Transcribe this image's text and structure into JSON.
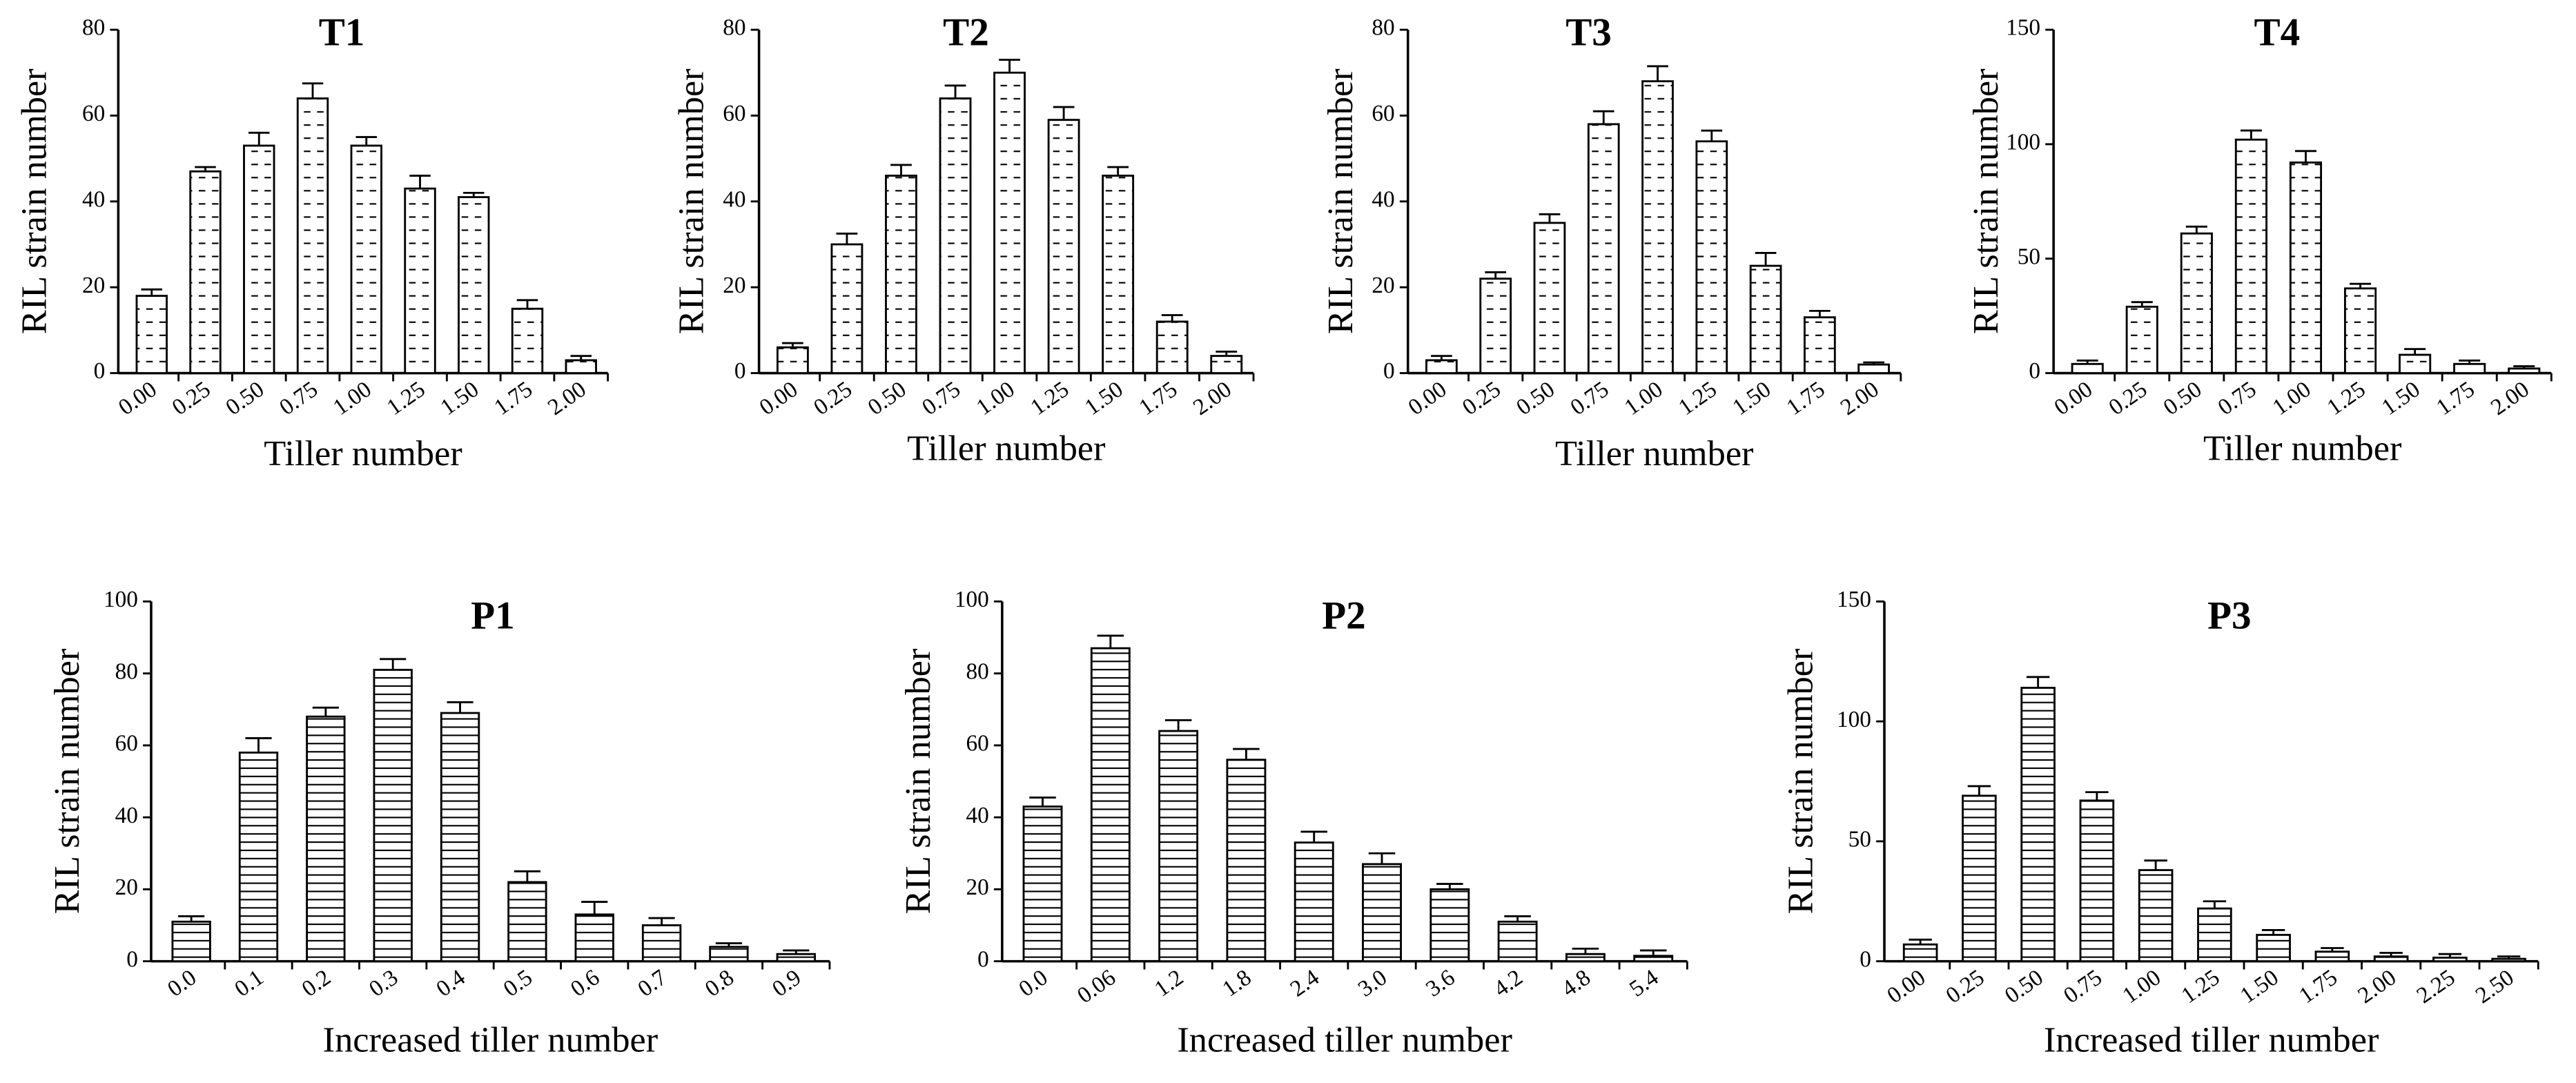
{
  "chart_data": [
    {
      "type": "bar",
      "title": "T1",
      "xlabel": "Tiller number",
      "ylabel": "RIL strain number",
      "pattern": "dashes",
      "categories": [
        "0.00",
        "0.25",
        "0.50",
        "0.75",
        "1.00",
        "1.25",
        "1.50",
        "1.75",
        "2.00"
      ],
      "values": [
        18,
        47,
        53,
        64,
        53,
        43,
        41,
        15,
        3
      ],
      "errors": [
        1.5,
        1,
        3,
        3.5,
        2,
        3,
        1,
        2,
        1
      ],
      "ylim": [
        0,
        80
      ],
      "yticks": [
        0,
        20,
        40,
        60,
        80
      ]
    },
    {
      "type": "bar",
      "title": "T2",
      "xlabel": "Tiller number",
      "ylabel": "RIL strain number",
      "pattern": "dashes",
      "categories": [
        "0.00",
        "0.25",
        "0.50",
        "0.75",
        "1.00",
        "1.25",
        "1.50",
        "1.75",
        "2.00"
      ],
      "values": [
        6,
        30,
        46,
        64,
        70,
        59,
        46,
        12,
        4
      ],
      "errors": [
        1,
        2.5,
        2.5,
        3,
        3,
        3,
        2,
        1.5,
        1
      ],
      "ylim": [
        0,
        80
      ],
      "yticks": [
        0,
        20,
        40,
        60,
        80
      ]
    },
    {
      "type": "bar",
      "title": "T3",
      "xlabel": "Tiller number",
      "ylabel": "RIL strain number",
      "pattern": "dashes",
      "categories": [
        "0.00",
        "0.25",
        "0.50",
        "0.75",
        "1.00",
        "1.25",
        "1.50",
        "1.75",
        "2.00"
      ],
      "values": [
        3,
        22,
        35,
        58,
        68,
        54,
        25,
        13,
        2
      ],
      "errors": [
        1,
        1.5,
        2,
        3,
        3.5,
        2.5,
        3,
        1.5,
        0.5
      ],
      "ylim": [
        0,
        80
      ],
      "yticks": [
        0,
        20,
        40,
        60,
        80
      ]
    },
    {
      "type": "bar",
      "title": "T4",
      "xlabel": "Tiller number",
      "ylabel": "RIL strain number",
      "pattern": "dashes",
      "categories": [
        "0.00",
        "0.25",
        "0.50",
        "0.75",
        "1.00",
        "1.25",
        "1.50",
        "1.75",
        "2.00"
      ],
      "values": [
        4,
        29,
        61,
        102,
        92,
        37,
        8,
        4,
        2
      ],
      "errors": [
        1.5,
        2,
        3,
        4,
        5,
        2,
        2.5,
        1.5,
        1
      ],
      "ylim": [
        0,
        150
      ],
      "yticks": [
        0,
        50,
        100,
        150
      ]
    },
    {
      "type": "bar",
      "title": "P1",
      "xlabel": "Increased tiller number",
      "ylabel": "RIL strain number",
      "pattern": "lines",
      "categories": [
        "0.0",
        "0.1",
        "0.2",
        "0.3",
        "0.4",
        "0.5",
        "0.6",
        "0.7",
        "0.8",
        "0.9"
      ],
      "values": [
        11,
        58,
        68,
        81,
        69,
        22,
        13,
        10,
        4,
        2
      ],
      "errors": [
        1.5,
        4,
        2.5,
        3,
        3,
        3,
        3.5,
        2,
        1,
        1
      ],
      "ylim": [
        0,
        100
      ],
      "yticks": [
        0,
        20,
        40,
        60,
        80,
        100
      ]
    },
    {
      "type": "bar",
      "title": "P2",
      "xlabel": "Increased tiller number",
      "ylabel": "RIL strain number",
      "pattern": "lines",
      "categories": [
        "0.0",
        "0.06",
        "1.2",
        "1.8",
        "2.4",
        "3.0",
        "3.6",
        "4.2",
        "4.8",
        "5.4"
      ],
      "values": [
        43,
        87,
        64,
        56,
        33,
        27,
        20,
        11,
        2,
        1.5
      ],
      "errors": [
        2.5,
        3.5,
        3,
        3,
        3,
        3,
        1.5,
        1.5,
        1.5,
        1.5
      ],
      "ylim": [
        0,
        100
      ],
      "yticks": [
        0,
        20,
        40,
        60,
        80,
        100
      ]
    },
    {
      "type": "bar",
      "title": "P3",
      "xlabel": "Increased tiller number",
      "ylabel": "RIL strain number",
      "pattern": "lines",
      "categories": [
        "0.00",
        "0.25",
        "0.50",
        "0.75",
        "1.00",
        "1.25",
        "1.50",
        "1.75",
        "2.00",
        "2.25",
        "2.50"
      ],
      "values": [
        7,
        69,
        114,
        67,
        38,
        22,
        11,
        4,
        2,
        1.5,
        1
      ],
      "errors": [
        2,
        4,
        4.5,
        3.5,
        4,
        3,
        2,
        1.5,
        1.5,
        1.5,
        1
      ],
      "ylim": [
        0,
        150
      ],
      "yticks": [
        0,
        50,
        100,
        150
      ]
    }
  ]
}
